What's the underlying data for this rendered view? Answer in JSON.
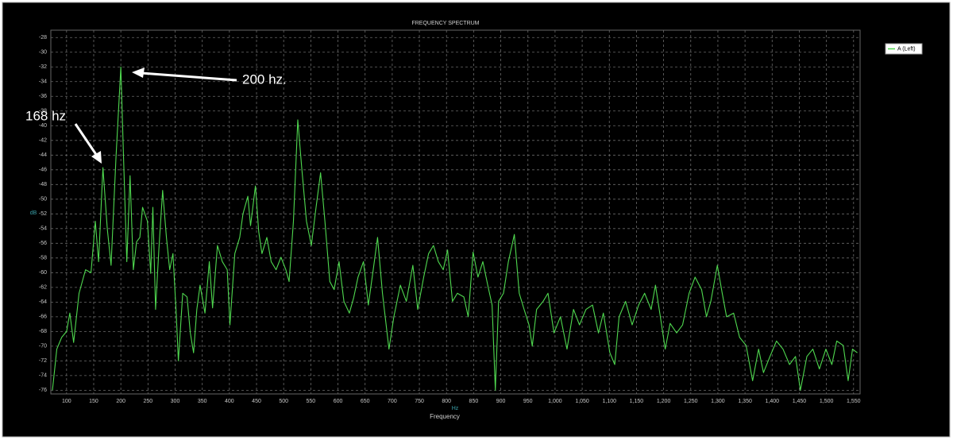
{
  "chart_data": {
    "type": "line",
    "title": "FREQUENCY SPECTRUM",
    "x_label": "Frequency",
    "x_unit": "Hz",
    "y_label": "dB",
    "grid": true,
    "legend": "right",
    "xlim": [
      71,
      1562
    ],
    "ylim": [
      -76.5,
      -27
    ],
    "xticks": [
      100,
      150,
      200,
      250,
      300,
      350,
      400,
      450,
      500,
      550,
      600,
      650,
      700,
      750,
      800,
      850,
      900,
      950,
      {
        "value": 1000,
        "label": "1,000"
      },
      {
        "value": 1050,
        "label": "1,050"
      },
      {
        "value": 1100,
        "label": "1,100"
      },
      {
        "value": 1150,
        "label": "1,150"
      },
      {
        "value": 1200,
        "label": "1,200"
      },
      {
        "value": 1250,
        "label": "1,250"
      },
      {
        "value": 1300,
        "label": "1,300"
      },
      {
        "value": 1350,
        "label": "1,350"
      },
      {
        "value": 1400,
        "label": "1,400"
      },
      {
        "value": 1450,
        "label": "1,450"
      },
      {
        "value": 1500,
        "label": "1,500"
      },
      {
        "value": 1550,
        "label": "1,550"
      }
    ],
    "yticks": [
      -28,
      -30,
      -32,
      -34,
      -36,
      -38,
      -40,
      -42,
      -44,
      -46,
      -48,
      -50,
      -52,
      -54,
      -56,
      -58,
      -60,
      -62,
      -64,
      -66,
      -68,
      -70,
      -72,
      -74,
      -76
    ],
    "x": [
      74,
      82,
      91,
      100,
      106,
      113,
      123,
      135,
      145,
      153,
      159,
      167,
      175,
      182,
      191,
      200,
      205,
      211,
      217,
      223,
      229,
      235,
      240,
      249,
      255,
      259,
      264,
      270,
      277,
      284,
      290,
      296,
      302,
      306,
      314,
      322,
      328,
      334,
      340,
      346,
      355,
      363,
      369,
      378,
      387,
      396,
      401,
      410,
      419,
      425,
      434,
      439,
      448,
      454,
      460,
      469,
      477,
      486,
      495,
      504,
      510,
      518,
      526,
      533,
      542,
      551,
      559,
      568,
      576,
      585,
      593,
      602,
      611,
      621,
      629,
      637,
      647,
      656,
      665,
      673,
      682,
      694,
      703,
      715,
      726,
      738,
      747,
      758,
      767,
      776,
      785,
      794,
      802,
      811,
      820,
      832,
      840,
      849,
      858,
      867,
      876,
      884,
      890,
      896,
      905,
      914,
      925,
      934,
      943,
      952,
      958,
      966,
      978,
      987,
      998,
      1010,
      1022,
      1034,
      1045,
      1057,
      1069,
      1080,
      1089,
      1101,
      1110,
      1118,
      1130,
      1142,
      1154,
      1165,
      1177,
      1185,
      1194,
      1203,
      1212,
      1224,
      1235,
      1247,
      1258,
      1270,
      1279,
      1287,
      1299,
      1308,
      1316,
      1329,
      1340,
      1352,
      1364,
      1375,
      1384,
      1396,
      1408,
      1420,
      1432,
      1443,
      1452,
      1464,
      1475,
      1487,
      1499,
      1510,
      1519,
      1531,
      1540,
      1548,
      1557
    ],
    "series": [
      {
        "name": "A (Left)",
        "color": "#4fd84f",
        "values": [
          -76,
          -70.4,
          -68.8,
          -68,
          -65.5,
          -69.5,
          -62.8,
          -59.6,
          -60,
          -53,
          -58.5,
          -45.7,
          -54,
          -59,
          -44.4,
          -32,
          -44.4,
          -58.5,
          -46.8,
          -59.6,
          -55.8,
          -55.2,
          -51.1,
          -53,
          -60.1,
          -51.1,
          -65,
          -56.9,
          -48.8,
          -55.2,
          -59.6,
          -57.4,
          -65.5,
          -72,
          -62.8,
          -63.3,
          -68.2,
          -70.9,
          -65,
          -61.7,
          -65.5,
          -58.5,
          -64.8,
          -56.3,
          -58.5,
          -59.6,
          -67.1,
          -57.4,
          -55.2,
          -52,
          -49.6,
          -53.6,
          -48.2,
          -54.4,
          -57.4,
          -55.2,
          -58.5,
          -59.6,
          -57.9,
          -59.6,
          -61.2,
          -53,
          -39.2,
          -45.5,
          -53,
          -56.3,
          -51.5,
          -46.4,
          -53,
          -61.2,
          -62.3,
          -58.5,
          -63.9,
          -65.5,
          -63.4,
          -60.6,
          -58.5,
          -64.4,
          -59.6,
          -55.2,
          -62.8,
          -70.4,
          -66,
          -61.7,
          -63.9,
          -59,
          -65,
          -60.6,
          -57.4,
          -56.3,
          -58.5,
          -59.6,
          -56.9,
          -63.9,
          -62.8,
          -63.3,
          -66,
          -57.2,
          -60.6,
          -58.5,
          -61.7,
          -64.4,
          -76,
          -63.9,
          -62.8,
          -58.5,
          -54.8,
          -62.8,
          -65,
          -67.1,
          -70,
          -65,
          -63.9,
          -62.8,
          -68.2,
          -66,
          -70.4,
          -65,
          -67.1,
          -65,
          -64.4,
          -68.2,
          -65.5,
          -70.9,
          -72.5,
          -66,
          -63.9,
          -67.1,
          -64.4,
          -62.8,
          -65,
          -61.7,
          -66,
          -70.4,
          -66.9,
          -68.2,
          -67.1,
          -62.8,
          -60.6,
          -62.3,
          -66,
          -63.9,
          -59,
          -62.8,
          -66,
          -65.5,
          -68.8,
          -69.9,
          -74.7,
          -70.4,
          -73.6,
          -71.4,
          -69.3,
          -70.4,
          -72.5,
          -71.4,
          -76,
          -71.4,
          -70.4,
          -73.1,
          -70.4,
          -72.5,
          -69.3,
          -69.9,
          -74.7,
          -70.4,
          -70.9
        ]
      }
    ],
    "annotations": [
      "200 hz.",
      "168 hz"
    ]
  }
}
